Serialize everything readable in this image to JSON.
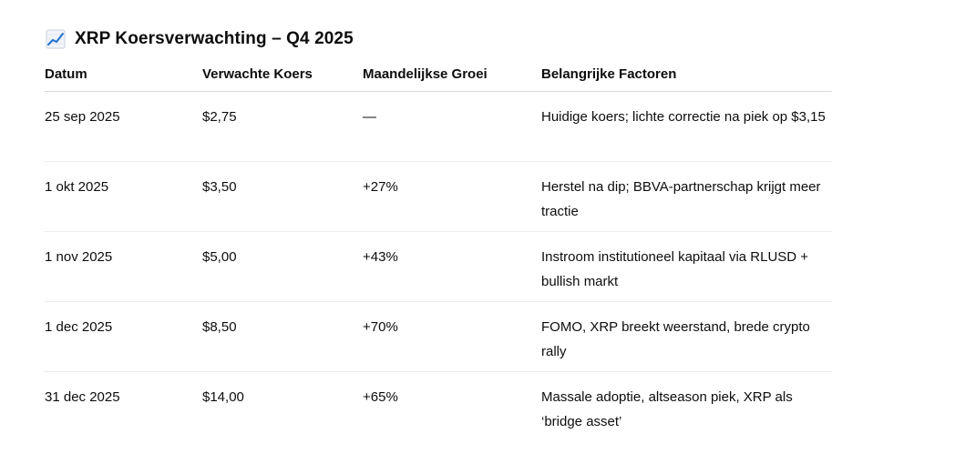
{
  "title": {
    "icon": "chart-increasing-icon",
    "text": "XRP Koersverwachting – Q4 2025"
  },
  "table": {
    "headers": [
      "Datum",
      "Verwachte Koers",
      "Maandelijkse Groei",
      "Belangrijke Factoren"
    ],
    "rows": [
      [
        "25 sep 2025",
        "$2,75",
        "—",
        "Huidige koers; lichte correctie na piek op $3,15"
      ],
      [
        "1 okt 2025",
        "$3,50",
        "+27%",
        "Herstel na dip; BBVA-partnerschap krijgt meer tractie"
      ],
      [
        "1 nov 2025",
        "$5,00",
        "+43%",
        "Instroom institutioneel kapitaal via RLUSD + bullish markt"
      ],
      [
        "1 dec 2025",
        "$8,50",
        "+70%",
        "FOMO, XRP breekt weerstand, brede crypto rally"
      ],
      [
        "31 dec 2025",
        "$14,00",
        "+65%",
        "Massale adoptie, altseason piek, XRP als ‘bridge asset’"
      ]
    ]
  },
  "colors": {
    "text": "#0d0d0d",
    "divider": "#ececec",
    "icon_line": "#1f6fd1",
    "icon_bg": "#f1f4fa"
  }
}
